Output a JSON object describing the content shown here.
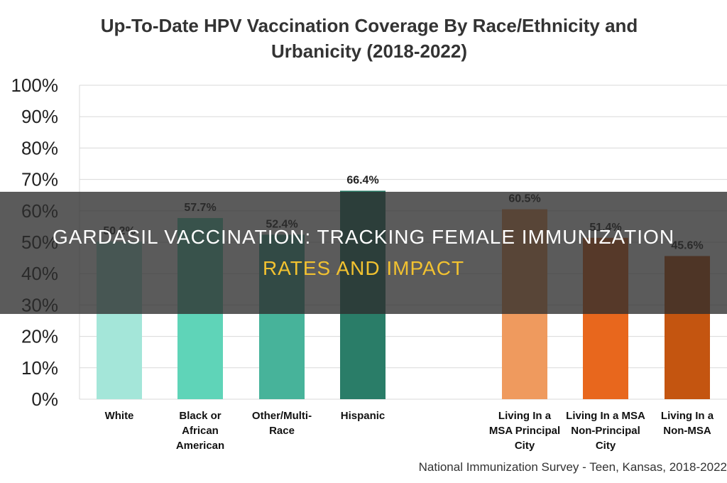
{
  "chart_data": {
    "type": "bar",
    "title_lines": [
      "Up-To-Date HPV Vaccination Coverage By Race/Ethnicity and",
      "Urbanicity (2018-2022)"
    ],
    "ylim": [
      0,
      100
    ],
    "ytick_labels": [
      "0%",
      "10%",
      "20%",
      "30%",
      "40%",
      "50%",
      "60%",
      "70%",
      "80%",
      "90%",
      "100%"
    ],
    "grid": true,
    "categories": [
      [
        "White"
      ],
      [
        "Black or",
        "African",
        "American"
      ],
      [
        "Other/Multi-",
        "Race"
      ],
      [
        "Hispanic"
      ],
      [
        "Living In a",
        "MSA Principal",
        "City"
      ],
      [
        "Living In a MSA",
        "Non-Principal",
        "City"
      ],
      [
        "Living In a",
        "Non-MSA"
      ]
    ],
    "values": [
      50.2,
      57.7,
      52.4,
      66.4,
      60.5,
      51.4,
      45.6
    ],
    "value_labels": [
      "50.2%",
      "57.7%",
      "52.4%",
      "66.4%",
      "60.5%",
      "51.4%",
      "45.6%"
    ],
    "colors": [
      "#a4e6d9",
      "#5fd4b8",
      "#47b39a",
      "#2a7d68",
      "#ef9a5e",
      "#e8671d",
      "#c45510"
    ]
  },
  "source": "National Immunization Survey - Teen, Kansas, 2018-2022",
  "banner": {
    "line1": "Gardasil Vaccination: Tracking Female Immunization",
    "line2": "Rates And Impact"
  }
}
